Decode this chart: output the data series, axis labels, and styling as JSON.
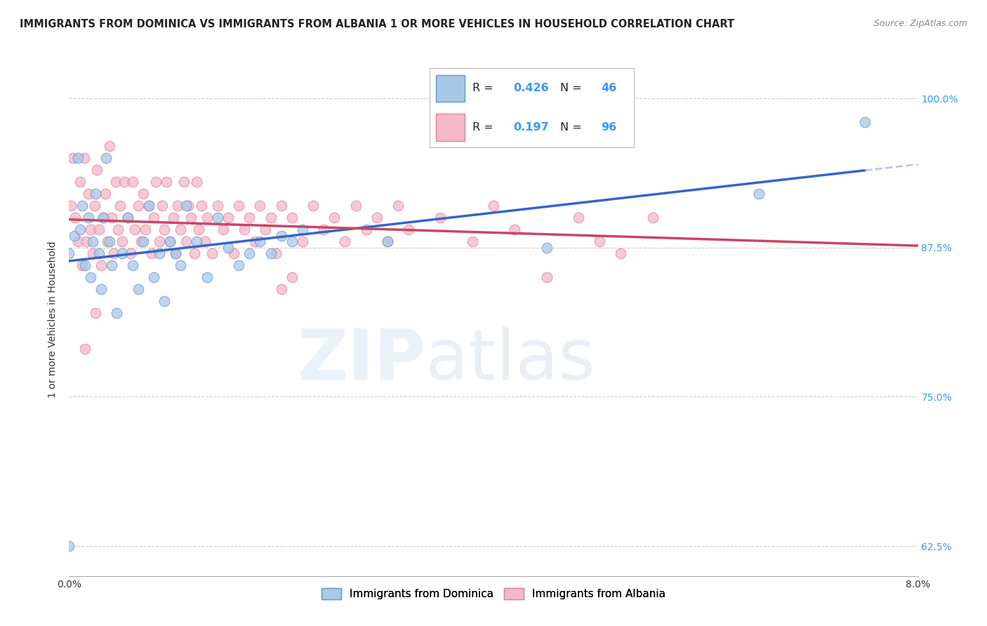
{
  "title": "IMMIGRANTS FROM DOMINICA VS IMMIGRANTS FROM ALBANIA 1 OR MORE VEHICLES IN HOUSEHOLD CORRELATION CHART",
  "source": "Source: ZipAtlas.com",
  "ylabel": "1 or more Vehicles in Household",
  "legend_label_1": "Immigrants from Dominica",
  "legend_label_2": "Immigrants from Albania",
  "R1": 0.426,
  "N1": 46,
  "R2": 0.197,
  "N2": 96,
  "color1": "#a8c8e8",
  "color2": "#f4b8c8",
  "trend1_color": "#3366cc",
  "trend2_color": "#cc4466",
  "xlim": [
    0.0,
    8.0
  ],
  "ylim": [
    60.0,
    103.0
  ],
  "yticks": [
    62.5,
    75.0,
    87.5,
    100.0
  ],
  "background_color": "#ffffff",
  "watermark_zip": "ZIP",
  "watermark_atlas": "atlas",
  "title_fontsize": 10.5,
  "axis_label_fontsize": 10,
  "tick_fontsize": 10
}
